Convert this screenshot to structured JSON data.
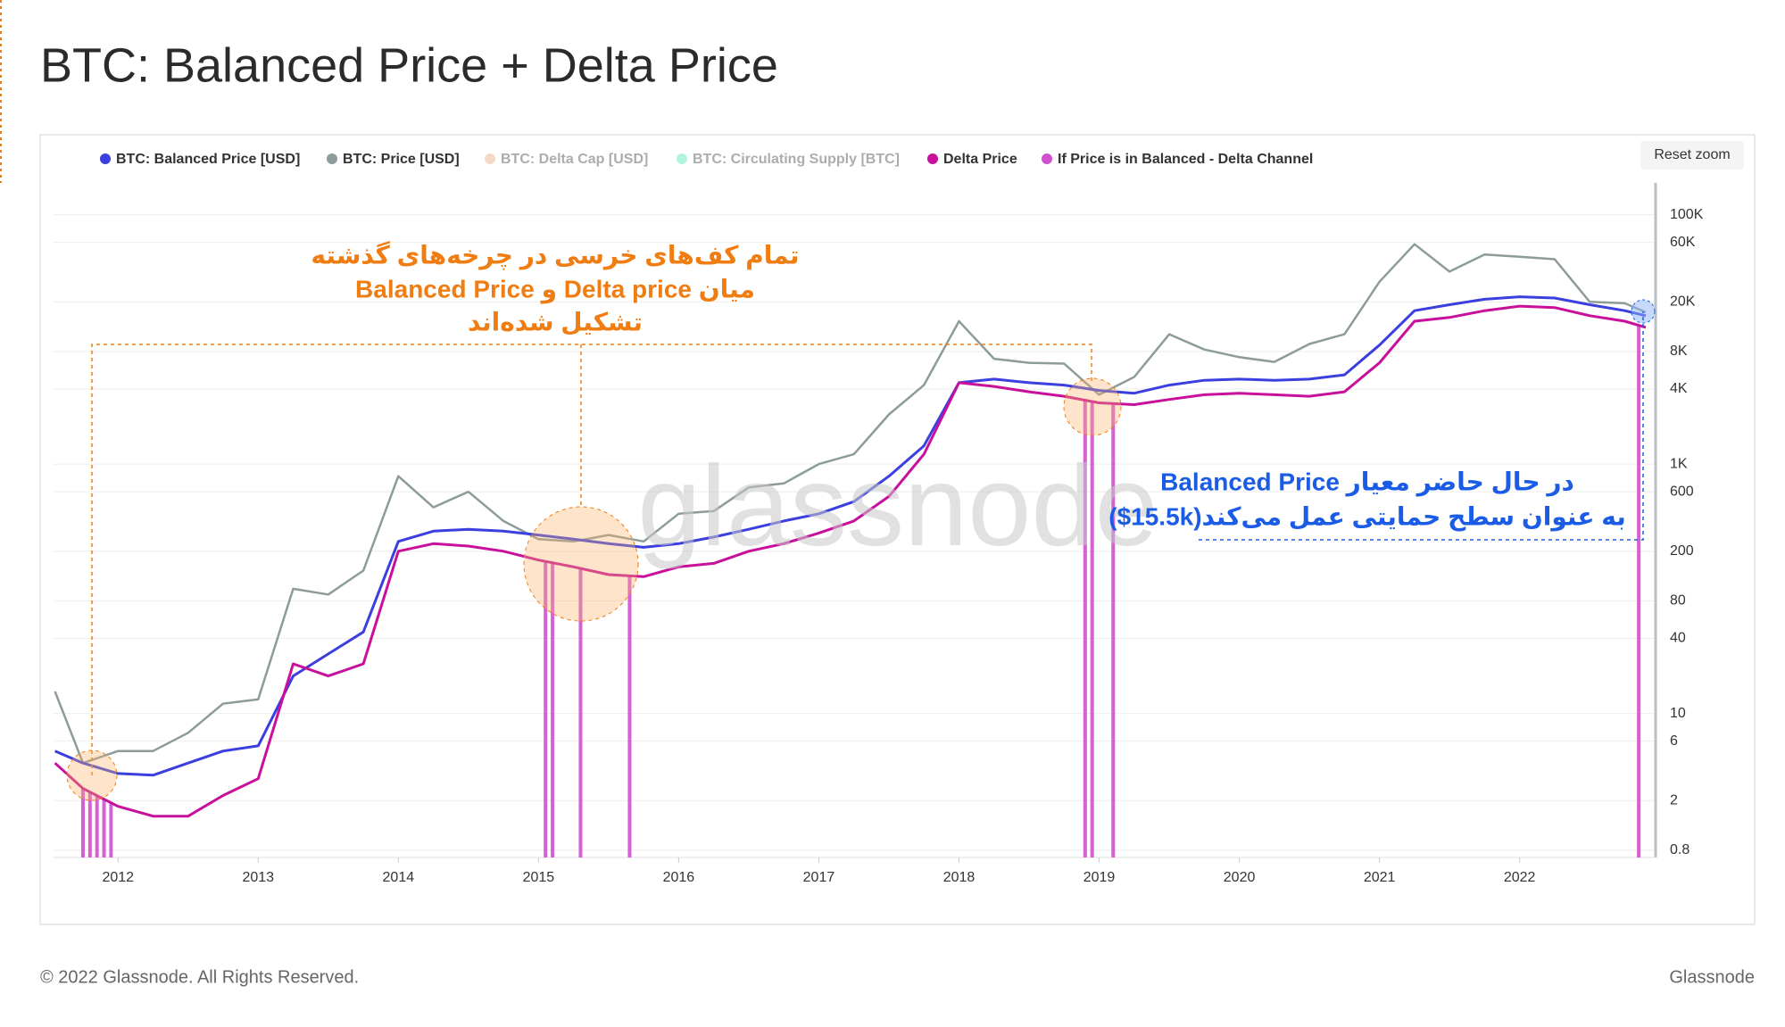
{
  "chart_data": {
    "type": "line",
    "title": "BTC: Balanced Price + Delta Price",
    "x": [
      2011.55,
      2011.75,
      2012.0,
      2012.25,
      2012.5,
      2012.75,
      2013.0,
      2013.25,
      2013.5,
      2013.75,
      2014.0,
      2014.25,
      2014.5,
      2014.75,
      2015.0,
      2015.25,
      2015.5,
      2015.75,
      2016.0,
      2016.25,
      2016.5,
      2016.75,
      2017.0,
      2017.25,
      2017.5,
      2017.75,
      2018.0,
      2018.25,
      2018.5,
      2018.75,
      2019.0,
      2019.25,
      2019.5,
      2019.75,
      2020.0,
      2020.25,
      2020.5,
      2020.75,
      2021.0,
      2021.25,
      2021.5,
      2021.75,
      2022.0,
      2022.25,
      2022.5,
      2022.75,
      2022.9
    ],
    "series": [
      {
        "name": "BTC: Balanced Price [USD]",
        "color": "#3b3fe0",
        "values": [
          5,
          4,
          3.3,
          3.2,
          4,
          5,
          5.5,
          20,
          30,
          45,
          240,
          290,
          300,
          290,
          270,
          250,
          230,
          215,
          230,
          260,
          300,
          350,
          400,
          500,
          800,
          1400,
          4500,
          4800,
          4500,
          4300,
          3900,
          3700,
          4300,
          4700,
          4800,
          4700,
          4800,
          5200,
          9000,
          17000,
          19000,
          21000,
          22000,
          21500,
          19000,
          17000,
          15500
        ]
      },
      {
        "name": "BTC: Price [USD]",
        "color": "#8c9c9a",
        "values": [
          15,
          4,
          5,
          5,
          7,
          12,
          13,
          100,
          90,
          140,
          800,
          450,
          600,
          350,
          250,
          240,
          270,
          240,
          400,
          420,
          650,
          700,
          1000,
          1200,
          2500,
          4300,
          14000,
          7000,
          6500,
          6400,
          3600,
          5000,
          11000,
          8300,
          7200,
          6600,
          9200,
          11000,
          29000,
          58000,
          35000,
          48000,
          46000,
          44000,
          20000,
          19500,
          16500
        ]
      },
      {
        "name": "Delta Price",
        "color": "#c8109a",
        "values": [
          4,
          2.5,
          1.8,
          1.5,
          1.5,
          2.2,
          3,
          25,
          20,
          25,
          200,
          230,
          220,
          200,
          170,
          150,
          130,
          125,
          150,
          160,
          200,
          230,
          280,
          350,
          550,
          1200,
          4500,
          4200,
          3800,
          3500,
          3100,
          3000,
          3300,
          3600,
          3700,
          3600,
          3500,
          3800,
          6500,
          14000,
          15000,
          17000,
          18500,
          18000,
          15500,
          14000,
          12500
        ]
      }
    ],
    "hidden_series": [
      {
        "name": "BTC: Delta Cap [USD]",
        "color": "#e8a070"
      },
      {
        "name": "BTC: Circulating Supply [BTC]",
        "color": "#40e0b0"
      }
    ],
    "channel": {
      "name": "If Price is in Balanced - Delta Channel",
      "color": "#d050d0",
      "x": [
        2011.75,
        2011.8,
        2011.85,
        2011.9,
        2011.95,
        2015.05,
        2015.1,
        2015.3,
        2015.65,
        2018.9,
        2018.95,
        2019.1,
        2022.85
      ]
    },
    "log_scale": true,
    "grid": true,
    "xlim": [
      2011.54,
      2022.97
    ],
    "xticks": [
      2012,
      2013,
      2014,
      2015,
      2016,
      2017,
      2018,
      2019,
      2020,
      2021,
      2022
    ],
    "ylim": [
      0.7,
      180000
    ],
    "yticks": [
      0.8,
      2,
      6,
      10,
      40,
      80,
      200,
      600,
      {
        "value": 1000,
        "label": "1K"
      },
      {
        "value": 4000,
        "label": "4K"
      },
      {
        "value": 8000,
        "label": "8K"
      },
      {
        "value": 20000,
        "label": "20K"
      },
      {
        "value": 60000,
        "label": "60K"
      },
      {
        "value": 100000,
        "label": "100K"
      }
    ],
    "annotations": {
      "bear_bottoms": [
        "تمام کف‌های خرسی در چرخه‌های گذشته",
        "میان Delta price و Balanced Price",
        "تشکیل شده‌اند"
      ],
      "current_support": [
        "در حال حاضر معیار Balanced Price",
        "به عنوان سطح حمایتی عمل می‌کند(15.5k$)"
      ]
    },
    "reset_zoom": "Reset zoom",
    "watermark": "glassnode",
    "footer": {
      "copyright": "© 2022 Glassnode. All Rights Reserved.",
      "brand": "Glassnode"
    }
  }
}
